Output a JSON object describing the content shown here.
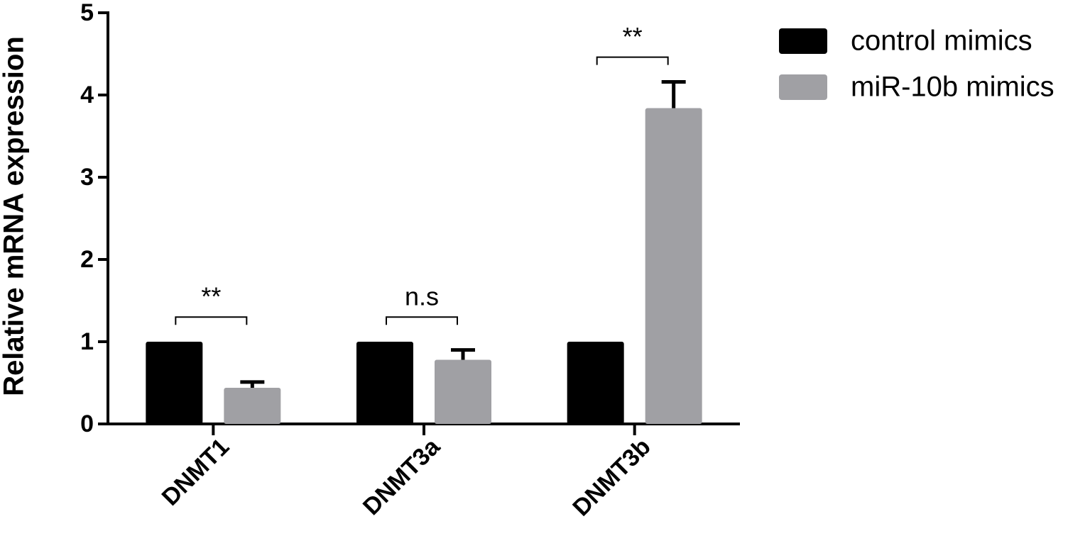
{
  "chart_data": {
    "type": "bar",
    "y_label": "Relative mRNA expression",
    "categories": [
      "DNMT1",
      "DNMT3a",
      "DNMT3b"
    ],
    "series": [
      {
        "name": "control mimics",
        "color": "#000000",
        "values": [
          1.0,
          1.0,
          1.0
        ]
      },
      {
        "name": "miR-10b mimics",
        "color": "#a0a0a4",
        "values": [
          0.44,
          0.78,
          3.84
        ],
        "errors": [
          0.07,
          0.12,
          0.32
        ]
      }
    ],
    "significance": [
      "**",
      "n.s",
      "**"
    ],
    "ylim": [
      0,
      5
    ],
    "yticks": [
      0,
      1,
      2,
      3,
      4,
      5
    ]
  }
}
